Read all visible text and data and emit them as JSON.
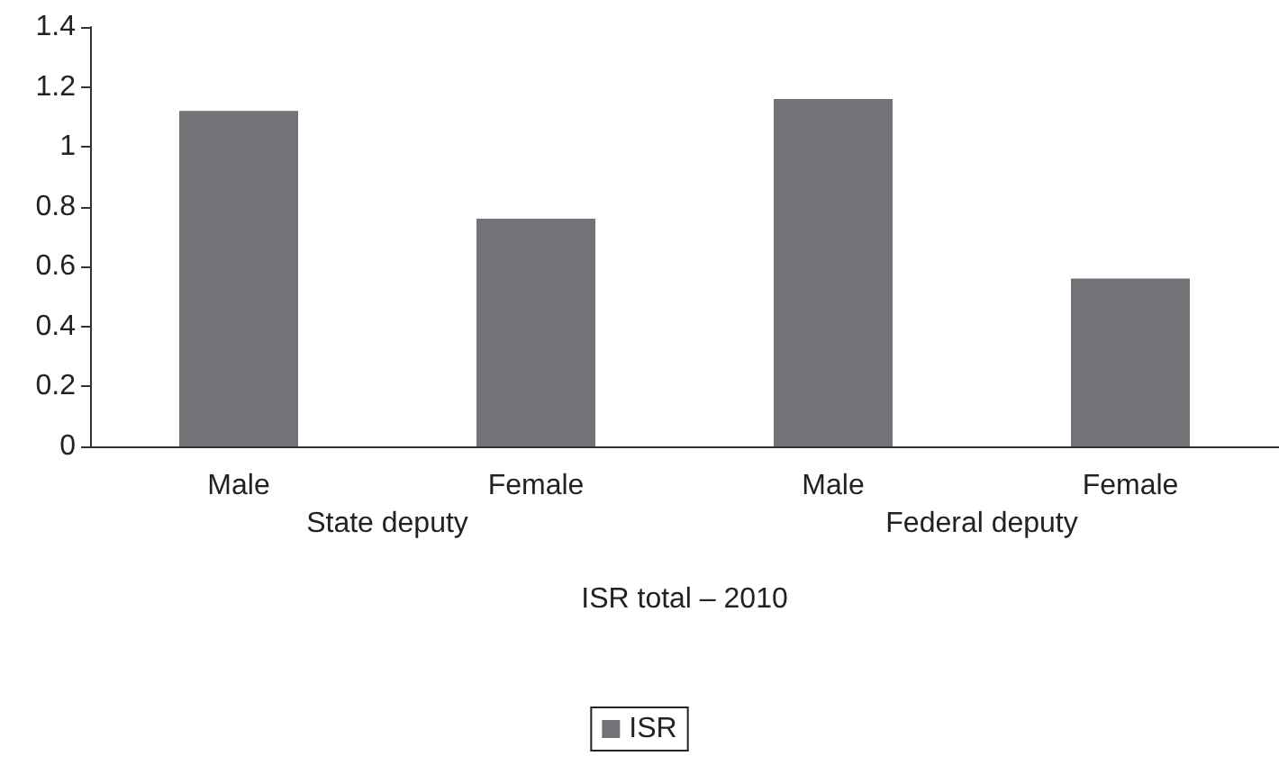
{
  "chart_data": {
    "type": "bar",
    "xlabel": "ISR total – 2010",
    "categories": [
      "Male",
      "Female",
      "Male",
      "Female"
    ],
    "series": [
      {
        "name": "ISR",
        "color": "#737377",
        "values": [
          1.12,
          0.76,
          1.16,
          0.56
        ]
      }
    ],
    "annotations": [
      "State deputy",
      "Federal deputy"
    ],
    "ylim": [
      0,
      1.4
    ],
    "yticks": [
      0,
      0.2,
      0.4,
      0.6,
      0.8,
      1,
      1.2,
      1.4
    ],
    "grid": false,
    "legend": "bottom"
  }
}
